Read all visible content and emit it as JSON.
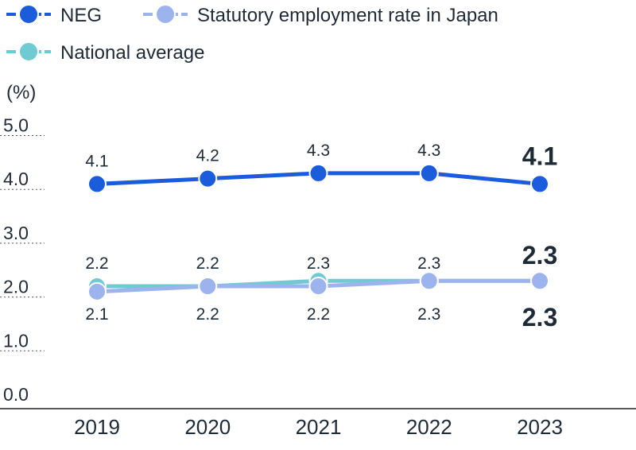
{
  "chart_data": {
    "type": "line",
    "unit_label": "(%)",
    "categories": [
      "2019",
      "2020",
      "2021",
      "2022",
      "2023"
    ],
    "ylim": [
      0,
      5
    ],
    "yticks": [
      "0.0",
      "1.0",
      "2.0",
      "3.0",
      "4.0",
      "5.0"
    ],
    "grid": "dotted horizontal at 1.0–5.0",
    "legend_position": "top-left",
    "series": [
      {
        "name": "NEG",
        "color": "#1a5cdc",
        "values": [
          4.1,
          4.2,
          4.3,
          4.3,
          4.1
        ],
        "labels": [
          "4.1",
          "4.2",
          "4.3",
          "4.3",
          "4.1"
        ]
      },
      {
        "name": "Statutory employment rate in Japan",
        "color": "#9db3ee",
        "values": [
          2.1,
          2.2,
          2.2,
          2.3,
          2.3
        ],
        "labels": [
          "2.1",
          "2.2",
          "2.2",
          "2.3",
          "2.3"
        ]
      },
      {
        "name": "National average",
        "color": "#6fcbd1",
        "values": [
          2.2,
          2.2,
          2.3,
          2.3,
          2.3
        ],
        "labels": [
          "2.2",
          "2.2",
          "2.3",
          "2.3",
          "2.3"
        ]
      }
    ]
  }
}
